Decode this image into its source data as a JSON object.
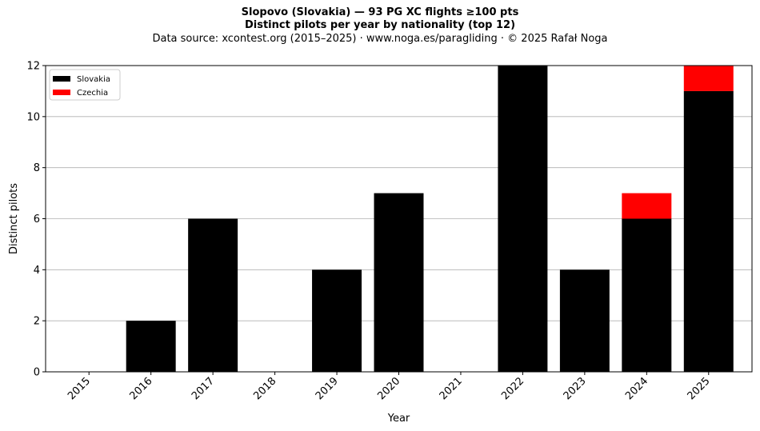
{
  "chart_data": {
    "type": "bar",
    "stacked": true,
    "title": "Slopovo (Slovakia)  —  93 PG XC flights ≥100 pts",
    "subtitle": "Distinct pilots per year by nationality (top 12)",
    "source": "Data source: xcontest.org (2015–2025)  ·  www.noga.es/paragliding  ·  © 2025 Rafał Noga",
    "xlabel": "Year",
    "ylabel": "Distinct pilots",
    "ylim": [
      0,
      12
    ],
    "yticks": [
      "0",
      "2",
      "4",
      "6",
      "8",
      "10",
      "12"
    ],
    "categories": [
      "2015",
      "2016",
      "2017",
      "2018",
      "2019",
      "2020",
      "2021",
      "2022",
      "2023",
      "2024",
      "2025"
    ],
    "series": [
      {
        "name": "Slovakia",
        "color": "#000000",
        "values": [
          0,
          2,
          6,
          0,
          4,
          7,
          0,
          12,
          4,
          6,
          11
        ]
      },
      {
        "name": "Czechia",
        "color": "#ff0000",
        "values": [
          0,
          0,
          0,
          0,
          0,
          0,
          0,
          0,
          0,
          1,
          1
        ]
      }
    ],
    "grid": "y",
    "legend": "upper-left"
  }
}
